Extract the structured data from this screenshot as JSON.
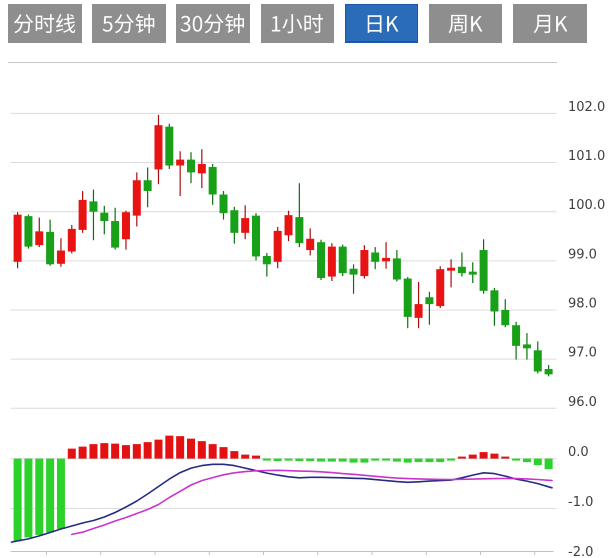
{
  "tabbar": {
    "items": [
      {
        "id": "timeline",
        "label": "分时线",
        "selected": false
      },
      {
        "id": "5min",
        "label": "5分钟",
        "selected": false
      },
      {
        "id": "30min",
        "label": "30分钟",
        "selected": false
      },
      {
        "id": "1hour",
        "label": "1小时",
        "selected": false
      },
      {
        "id": "daily-k",
        "label": "日K",
        "selected": true
      },
      {
        "id": "weekly-k",
        "label": "周K",
        "selected": false
      },
      {
        "id": "monthly-k",
        "label": "月K",
        "selected": false
      }
    ],
    "colors": {
      "tab_bg": "#8e8e8e",
      "tab_text": "#ffffff",
      "active_bg": "#2a6cb8",
      "active_border": "#1e57a4"
    }
  },
  "chart_data": {
    "type": "candlestick",
    "title": "",
    "legend": [],
    "grid": true,
    "main_panel": {
      "y_ticks": [
        "102.0",
        "101.0",
        "100.0",
        "99.0",
        "98.0",
        "97.0",
        "96.0"
      ],
      "y_tick_values": [
        102.0,
        101.0,
        100.0,
        99.0,
        98.0,
        97.0,
        96.0
      ],
      "candles_ohlc_hl": [
        [
          98.98,
          99.94,
          99.99,
          98.85
        ],
        [
          99.91,
          99.29,
          99.94,
          99.25
        ],
        [
          99.32,
          99.6,
          99.88,
          99.28
        ],
        [
          99.59,
          98.93,
          99.84,
          98.9
        ],
        [
          98.94,
          99.21,
          99.46,
          98.88
        ],
        [
          99.19,
          99.65,
          99.73,
          99.15
        ],
        [
          99.63,
          100.24,
          100.42,
          99.57
        ],
        [
          100.21,
          100.0,
          100.45,
          99.42
        ],
        [
          99.98,
          99.81,
          100.12,
          99.54
        ],
        [
          99.81,
          99.27,
          100.08,
          99.23
        ],
        [
          99.44,
          99.99,
          100.02,
          99.23
        ],
        [
          99.92,
          100.64,
          100.8,
          99.7
        ],
        [
          100.64,
          100.42,
          100.9,
          100.09
        ],
        [
          100.86,
          101.76,
          101.97,
          100.56
        ],
        [
          101.73,
          100.94,
          101.79,
          100.87
        ],
        [
          100.94,
          101.06,
          101.23,
          100.32
        ],
        [
          101.06,
          100.8,
          101.21,
          100.58
        ],
        [
          100.78,
          100.97,
          101.27,
          100.48
        ],
        [
          100.91,
          100.35,
          100.97,
          100.14
        ],
        [
          100.35,
          99.97,
          100.42,
          99.84
        ],
        [
          100.03,
          99.57,
          100.1,
          99.35
        ],
        [
          99.57,
          99.87,
          100.13,
          99.44
        ],
        [
          99.92,
          99.09,
          99.97,
          99.01
        ],
        [
          99.1,
          98.93,
          99.16,
          98.68
        ],
        [
          98.98,
          99.61,
          99.69,
          98.85
        ],
        [
          99.52,
          99.93,
          100.02,
          99.4
        ],
        [
          99.89,
          99.36,
          100.58,
          99.28
        ],
        [
          99.22,
          99.45,
          99.66,
          99.11
        ],
        [
          99.38,
          98.65,
          99.43,
          98.61
        ],
        [
          98.68,
          99.29,
          99.36,
          98.59
        ],
        [
          99.29,
          98.75,
          99.33,
          98.69
        ],
        [
          98.84,
          98.72,
          98.93,
          98.33
        ],
        [
          98.69,
          99.22,
          99.32,
          98.64
        ],
        [
          99.17,
          98.98,
          99.28,
          98.83
        ],
        [
          98.99,
          99.06,
          99.38,
          98.84
        ],
        [
          99.05,
          98.62,
          99.22,
          98.58
        ],
        [
          98.64,
          97.86,
          98.67,
          97.63
        ],
        [
          97.84,
          98.12,
          98.57,
          97.63
        ],
        [
          98.26,
          98.12,
          98.37,
          97.7
        ],
        [
          98.08,
          98.83,
          98.89,
          98.04
        ],
        [
          98.8,
          98.86,
          99.03,
          98.46
        ],
        [
          98.88,
          98.75,
          99.17,
          98.68
        ],
        [
          98.78,
          98.72,
          98.97,
          98.55
        ],
        [
          99.22,
          98.39,
          99.44,
          98.33
        ],
        [
          98.4,
          97.97,
          98.45,
          97.68
        ],
        [
          98.0,
          97.69,
          98.22,
          97.65
        ],
        [
          97.69,
          97.27,
          97.76,
          96.99
        ],
        [
          97.3,
          97.22,
          97.53,
          96.99
        ],
        [
          97.18,
          96.75,
          97.36,
          96.71
        ],
        [
          96.8,
          96.69,
          96.88,
          96.65
        ]
      ]
    },
    "sub_panel": {
      "indicator": "MACD",
      "y_ticks": [
        "0.0",
        "-1.0",
        "-2.0"
      ],
      "y_tick_values": [
        0.0,
        -1.0,
        -2.0
      ],
      "histogram": [
        -1.66,
        -1.58,
        -1.53,
        -1.48,
        -1.41,
        0.2,
        0.24,
        0.29,
        0.31,
        0.3,
        0.27,
        0.29,
        0.33,
        0.38,
        0.46,
        0.45,
        0.4,
        0.35,
        0.29,
        0.23,
        0.15,
        0.08,
        0.06,
        -0.03,
        -0.05,
        -0.03,
        -0.05,
        -0.05,
        -0.06,
        -0.06,
        -0.06,
        -0.08,
        -0.08,
        -0.04,
        -0.03,
        -0.06,
        -0.08,
        -0.07,
        -0.07,
        -0.07,
        -0.03,
        0.04,
        0.08,
        0.13,
        0.1,
        0.04,
        -0.04,
        -0.07,
        -0.13,
        -0.21
      ],
      "dif_line": [
        -1.65,
        -1.61,
        -1.55,
        -1.48,
        -1.41,
        -1.35,
        -1.29,
        -1.24,
        -1.17,
        -1.08,
        -0.97,
        -0.85,
        -0.71,
        -0.56,
        -0.41,
        -0.28,
        -0.19,
        -0.14,
        -0.115,
        -0.115,
        -0.14,
        -0.19,
        -0.24,
        -0.29,
        -0.33,
        -0.365,
        -0.385,
        -0.375,
        -0.375,
        -0.38,
        -0.385,
        -0.395,
        -0.4,
        -0.42,
        -0.44,
        -0.46,
        -0.475,
        -0.465,
        -0.45,
        -0.44,
        -0.43,
        -0.385,
        -0.33,
        -0.285,
        -0.3,
        -0.35,
        -0.41,
        -0.45,
        -0.5,
        -0.565
      ],
      "dea_line": [
        null,
        null,
        null,
        null,
        null,
        -1.52,
        -1.475,
        -1.4,
        -1.33,
        -1.25,
        -1.18,
        -1.1,
        -1.02,
        -0.92,
        -0.78,
        -0.655,
        -0.53,
        -0.44,
        -0.38,
        -0.325,
        -0.285,
        -0.26,
        -0.245,
        -0.238,
        -0.235,
        -0.242,
        -0.25,
        -0.255,
        -0.265,
        -0.28,
        -0.3,
        -0.315,
        -0.335,
        -0.355,
        -0.375,
        -0.39,
        -0.4,
        -0.407,
        -0.412,
        -0.416,
        -0.418,
        -0.415,
        -0.41,
        -0.405,
        -0.4,
        -0.398,
        -0.4,
        -0.406,
        -0.418,
        -0.435
      ]
    },
    "colors": {
      "up": "#e81414",
      "up_wick": "#ab0c0c",
      "down": "#18a018",
      "down_wick": "#0d6f0d",
      "hist_up": "#e31111",
      "hist_down": "#2bd22b",
      "dif": "#252a82",
      "dea": "#cc33cc",
      "grid": "#dcdcdc",
      "axis": "#c2c2c2",
      "label": "#3f3f3f"
    }
  }
}
